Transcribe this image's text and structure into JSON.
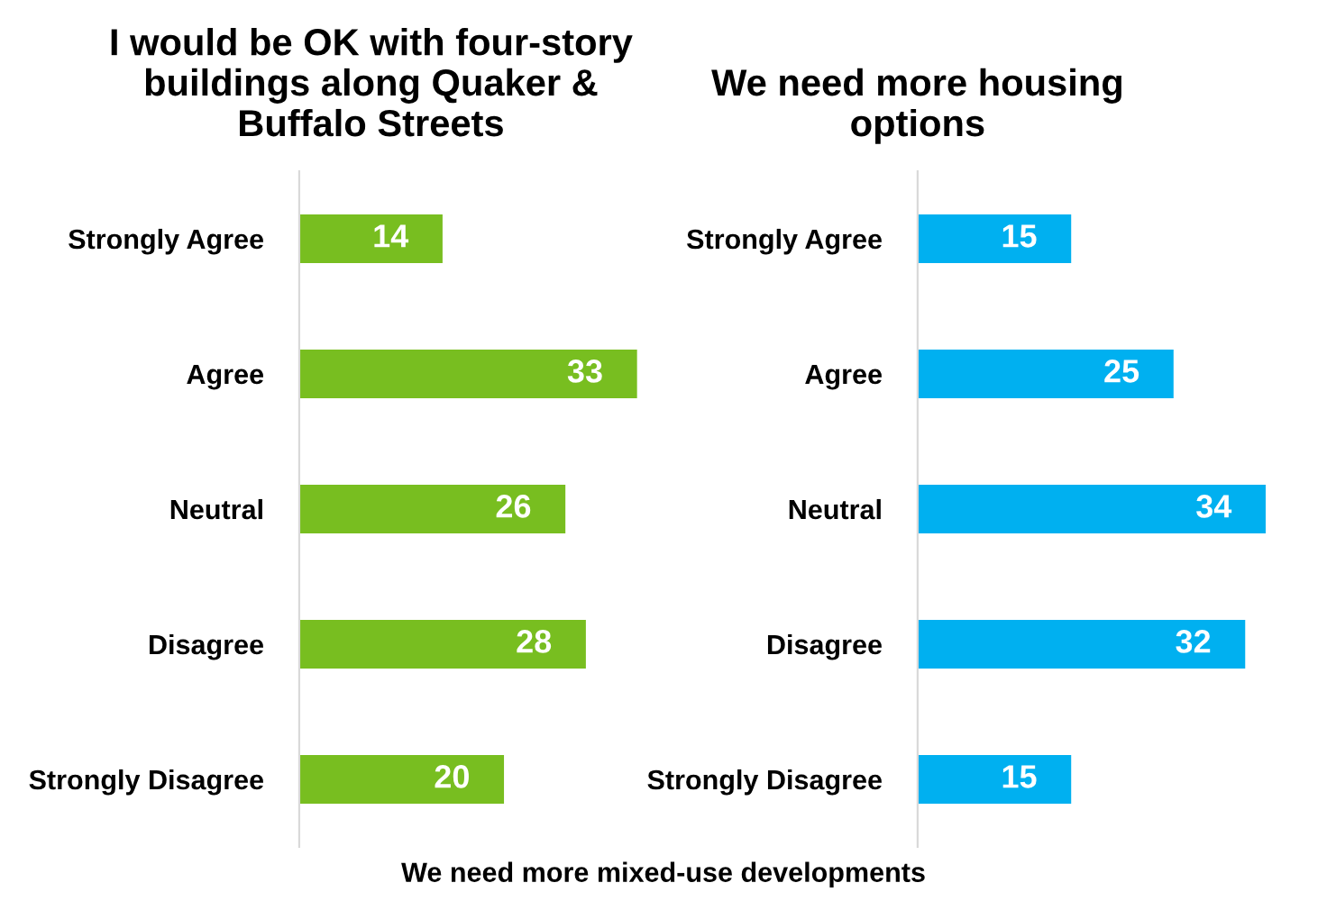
{
  "chart_data": [
    {
      "type": "bar",
      "orientation": "horizontal",
      "title": "I would be OK with four-story\nbuildings along Quaker &\nBuffalo Streets",
      "categories": [
        "Strongly Agree",
        "Agree",
        "Neutral",
        "Disagree",
        "Strongly Disagree"
      ],
      "values": [
        14,
        33,
        26,
        28,
        20
      ],
      "color": "#78be20",
      "data_labels": true,
      "grid": false,
      "tick_labels": "y",
      "annotations": [
        "We need more mixed-use developments"
      ]
    },
    {
      "type": "bar",
      "orientation": "horizontal",
      "title": "We need more housing\noptions",
      "categories": [
        "Strongly Agree",
        "Agree",
        "Neutral",
        "Disagree",
        "Strongly Disagree"
      ],
      "values": [
        15,
        25,
        34,
        32,
        15
      ],
      "color": "#00b0f0",
      "data_labels": true,
      "grid": false,
      "tick_labels": "y"
    }
  ]
}
